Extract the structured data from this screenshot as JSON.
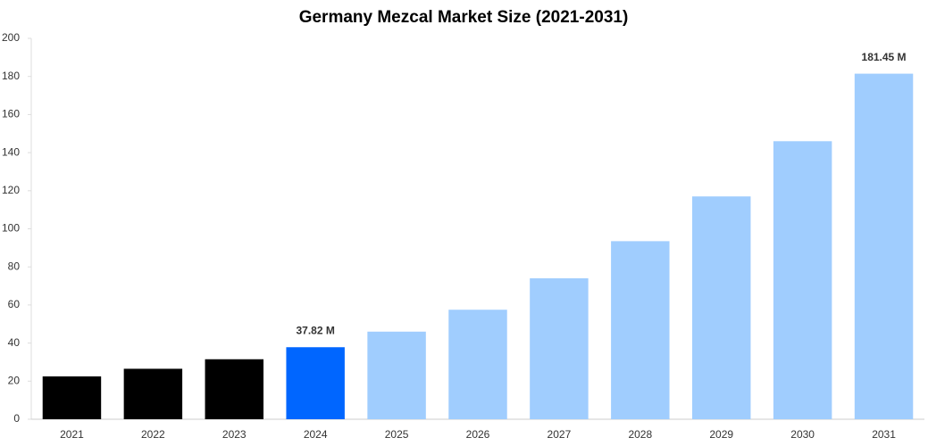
{
  "chart_data": {
    "type": "bar",
    "title": "Germany Mezcal Market Size (2021-2031)",
    "categories": [
      "2021",
      "2022",
      "2023",
      "2024",
      "2025",
      "2026",
      "2027",
      "2028",
      "2029",
      "2030",
      "2031"
    ],
    "values": [
      22.5,
      26.5,
      31.5,
      37.82,
      46,
      57.5,
      74,
      93.5,
      117,
      146,
      181.45
    ],
    "value_labels": [
      null,
      null,
      null,
      "37.82 M",
      null,
      null,
      null,
      null,
      null,
      null,
      "181.45 M"
    ],
    "colors": [
      "#000000",
      "#000000",
      "#000000",
      "#0066ff",
      "#a0cdfe",
      "#a0cdfe",
      "#a0cdfe",
      "#a0cdfe",
      "#a0cdfe",
      "#a0cdfe",
      "#a0cdfe"
    ],
    "ylim": [
      0,
      200
    ],
    "yticks": [
      0,
      20,
      40,
      60,
      80,
      100,
      120,
      140,
      160,
      180,
      200
    ],
    "grid": false
  }
}
